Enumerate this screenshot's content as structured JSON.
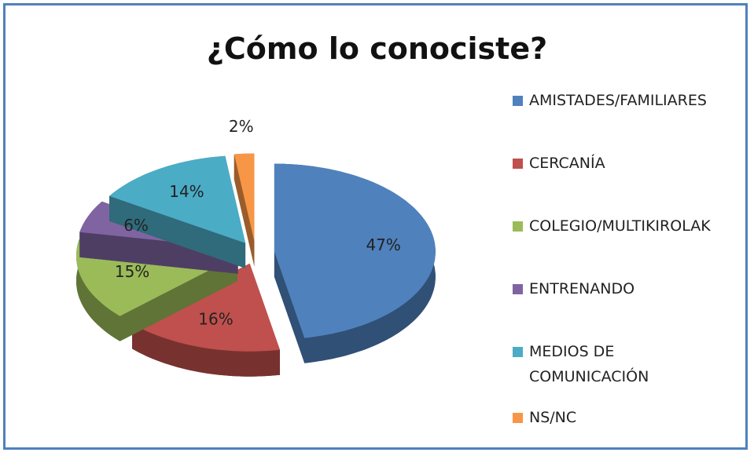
{
  "chart_data": {
    "type": "pie",
    "title": "¿Cómo lo conociste?",
    "categories": [
      "AMISTADES/FAMILIARES",
      "CERCANÍA",
      "COLEGIO/MULTIKIROLAK",
      "ENTRENANDO",
      "MEDIOS DE COMUNICACIÓN",
      "NS/NC"
    ],
    "values": [
      47,
      16,
      15,
      6,
      14,
      2
    ],
    "value_labels": [
      "47%",
      "16%",
      "15%",
      "6%",
      "14%",
      "2%"
    ],
    "colors": [
      "#4f81bd",
      "#c0504d",
      "#9bbb59",
      "#8064a2",
      "#4bacc6",
      "#f79646"
    ],
    "legend": "right"
  }
}
